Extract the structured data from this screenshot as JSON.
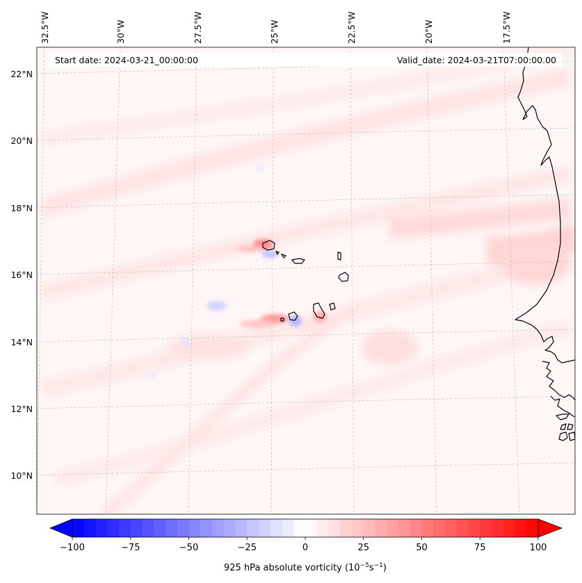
{
  "header": {
    "start_label": "Start date: 2024-03-21_00:00:00",
    "valid_label": "Valid_date: 2024-03-21T07:00:00.00"
  },
  "axes": {
    "lon_labels": [
      "32.5°W",
      "30°W",
      "27.5°W",
      "25°W",
      "22.5°W",
      "20°W",
      "17.5°W"
    ],
    "lat_labels": [
      "22°N",
      "20°N",
      "18°N",
      "16°N",
      "14°N",
      "12°N",
      "10°N"
    ]
  },
  "colorbar": {
    "ticks": [
      "−100",
      "−75",
      "−50",
      "−25",
      "0",
      "25",
      "50",
      "75",
      "100"
    ],
    "label_prefix": "925 hPa absolute vorticity (10",
    "label_exp1": "−5",
    "label_mid": "s",
    "label_exp2": "−1",
    "label_suffix": ")",
    "min": -100,
    "max": 100,
    "levels": 40,
    "neg_color": "#0000ff",
    "mid_color": "#ffffff",
    "pos_color": "#ff0000"
  },
  "map": {
    "field_base_color": "#fff5f5",
    "land_outline_color": "#000000"
  }
}
